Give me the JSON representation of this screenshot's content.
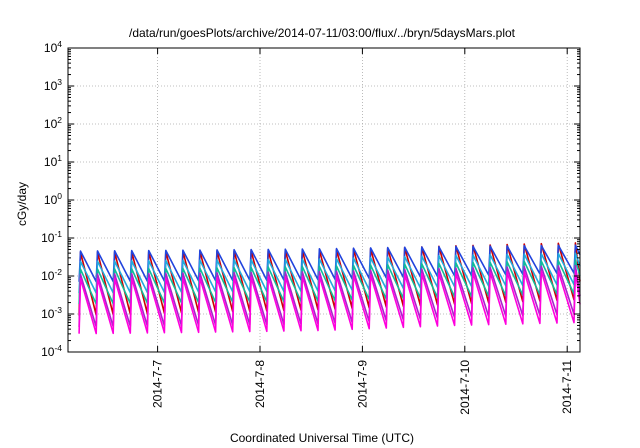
{
  "chart_data": {
    "type": "line",
    "title": "/data/run/goesPlots/archive/2014-07-11/03:00/flux/../bryn/5daysMars.plot",
    "xlabel": "Coordinated Universal Time (UTC)",
    "ylabel": "cGy/day",
    "yscale": "log",
    "ylim": [
      0.0001,
      10000
    ],
    "y_ticks": [
      {
        "base": "10",
        "exp": "-4"
      },
      {
        "base": "10",
        "exp": "-3"
      },
      {
        "base": "10",
        "exp": "-2"
      },
      {
        "base": "10",
        "exp": "-1"
      },
      {
        "base": "10",
        "exp": "0"
      },
      {
        "base": "10",
        "exp": "1"
      },
      {
        "base": "10",
        "exp": "2"
      },
      {
        "base": "10",
        "exp": "3"
      },
      {
        "base": "10",
        "exp": "4"
      }
    ],
    "xlim": [
      "2014-07-06 03:00",
      "2014-07-11 03:00"
    ],
    "x_ticks": [
      "2014-7-7",
      "2014-7-8",
      "2014-7-9",
      "2014-7-10",
      "2014-7-11"
    ],
    "grid": true,
    "legend": "none",
    "series": [
      {
        "color": "#cc0000",
        "peaks_by_day": [
          0.042,
          0.045,
          0.048,
          0.062,
          0.075
        ],
        "troughs_by_day": [
          0.0009,
          0.0011,
          0.0013,
          0.0018,
          0.0024
        ]
      },
      {
        "color": "#2244dd",
        "peaks_by_day": [
          0.045,
          0.048,
          0.052,
          0.06,
          0.065
        ],
        "troughs_by_day": [
          0.007,
          0.0075,
          0.008,
          0.01,
          0.012
        ]
      },
      {
        "color": "#22aadd",
        "peaks_by_day": [
          0.024,
          0.026,
          0.028,
          0.035,
          0.04
        ],
        "troughs_by_day": [
          0.0035,
          0.0038,
          0.004,
          0.0052,
          0.006
        ]
      },
      {
        "color": "#11bb99",
        "peaks_by_day": [
          0.015,
          0.016,
          0.018,
          0.022,
          0.026
        ],
        "troughs_by_day": [
          0.0018,
          0.002,
          0.0022,
          0.0028,
          0.0034
        ]
      },
      {
        "color": "#aa22cc",
        "peaks_by_day": [
          0.011,
          0.012,
          0.013,
          0.016,
          0.019
        ],
        "troughs_by_day": [
          0.00045,
          0.0005,
          0.00055,
          0.0008,
          0.001
        ]
      },
      {
        "color": "#ff00dd",
        "peaks_by_day": [
          0.0085,
          0.009,
          0.01,
          0.012,
          0.014
        ],
        "troughs_by_day": [
          0.0003,
          0.00033,
          0.00037,
          0.0005,
          0.0006
        ]
      }
    ]
  }
}
